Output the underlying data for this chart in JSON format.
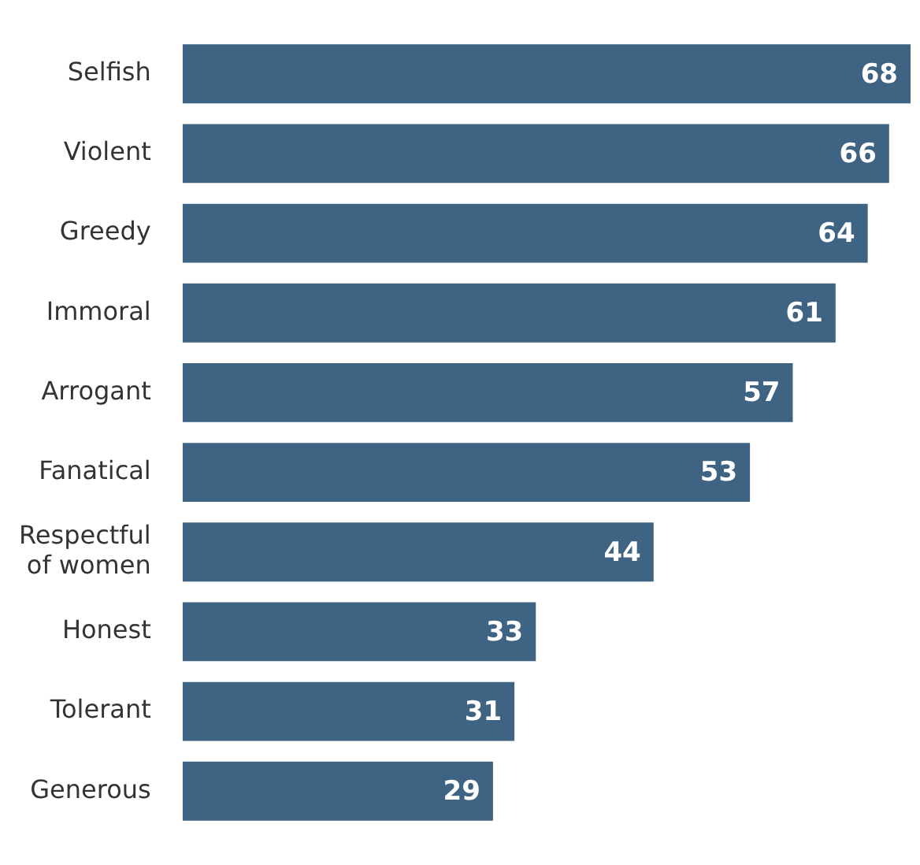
{
  "chart_data": {
    "type": "bar",
    "orientation": "horizontal",
    "categories": [
      "Selfish",
      "Violent",
      "Greedy",
      "Immoral",
      "Arrogant",
      "Fanatical",
      "Respectful of women",
      "Honest",
      "Tolerant",
      "Generous"
    ],
    "values": [
      68,
      66,
      64,
      61,
      57,
      53,
      44,
      33,
      31,
      29
    ],
    "color": "#3e6383",
    "data_labels": true,
    "legend": false
  }
}
